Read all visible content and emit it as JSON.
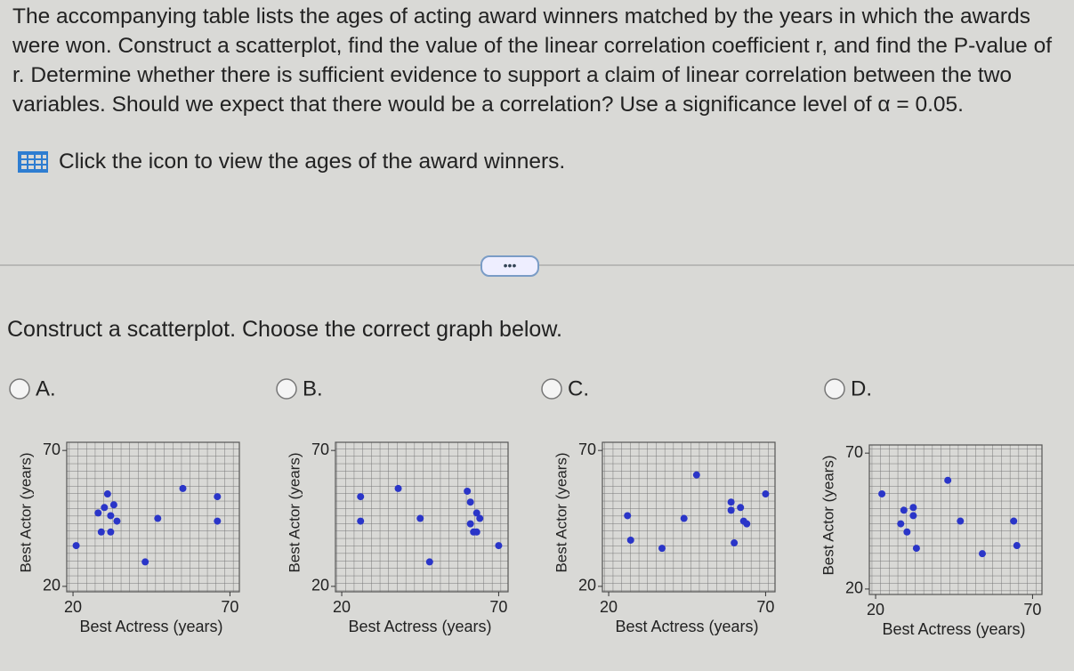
{
  "question": {
    "text": "The accompanying table lists the ages of acting award winners matched by the years in which the awards were won. Construct a scatterplot, find the value of the linear correlation coefficient r, and find the P-value of r. Determine whether there is sufficient evidence to support a claim of linear correlation between the two variables. Should we expect that there would be a correlation? Use a significance level of α = 0.05.",
    "icon_link": "Click the icon to view the ages of the award winners."
  },
  "more_button": "•••",
  "prompt": "Construct a scatterplot. Choose the correct graph below.",
  "chart_data": [
    {
      "type": "scatter",
      "option": "A.",
      "x_label": "Best Actress (years)",
      "y_label": "Best Actor (years)",
      "color": "#2a35c8",
      "x": [
        21,
        28,
        29,
        30,
        31,
        32,
        32,
        33,
        34,
        43,
        47,
        55,
        66,
        66
      ],
      "values": [
        35,
        47,
        40,
        49,
        54,
        46,
        40,
        50,
        44,
        29,
        45,
        56,
        53,
        44
      ],
      "xlim": [
        18,
        73
      ],
      "ylim": [
        18,
        73
      ],
      "xticks": [
        20,
        70
      ],
      "yticks": [
        20,
        70
      ]
    },
    {
      "type": "scatter",
      "option": "B.",
      "x_label": "Best Actress (years)",
      "y_label": "Best Actor (years)",
      "color": "#2a35c8",
      "x": [
        26,
        26,
        38,
        45,
        48,
        60,
        61,
        61,
        62,
        63,
        63,
        64,
        70
      ],
      "values": [
        53,
        44,
        56,
        45,
        29,
        55,
        51,
        43,
        40,
        47,
        40,
        45,
        35
      ],
      "xlim": [
        18,
        73
      ],
      "ylim": [
        18,
        73
      ],
      "xticks": [
        20,
        70
      ],
      "yticks": [
        20,
        70
      ]
    },
    {
      "type": "scatter",
      "option": "C.",
      "x_label": "Best Actress (years)",
      "y_label": "Best Actor (years)",
      "color": "#2a35c8",
      "x": [
        26,
        27,
        37,
        44,
        48,
        59,
        59,
        60,
        62,
        63,
        64,
        70
      ],
      "values": [
        46,
        37,
        34,
        45,
        61,
        48,
        51,
        36,
        49,
        44,
        43,
        54
      ],
      "xlim": [
        18,
        73
      ],
      "ylim": [
        18,
        73
      ],
      "xticks": [
        20,
        70
      ],
      "yticks": [
        20,
        70
      ]
    },
    {
      "type": "scatter",
      "option": "D.",
      "x_label": "Best Actress (years)",
      "y_label": "Best Actor (years)",
      "color": "#2a35c8",
      "x": [
        22,
        28,
        29,
        30,
        32,
        32,
        33,
        43,
        47,
        54,
        64,
        65
      ],
      "values": [
        55,
        44,
        49,
        41,
        50,
        47,
        35,
        60,
        45,
        33,
        45,
        36
      ],
      "xlim": [
        18,
        73
      ],
      "ylim": [
        18,
        73
      ],
      "xticks": [
        20,
        70
      ],
      "yticks": [
        20,
        70
      ]
    }
  ]
}
